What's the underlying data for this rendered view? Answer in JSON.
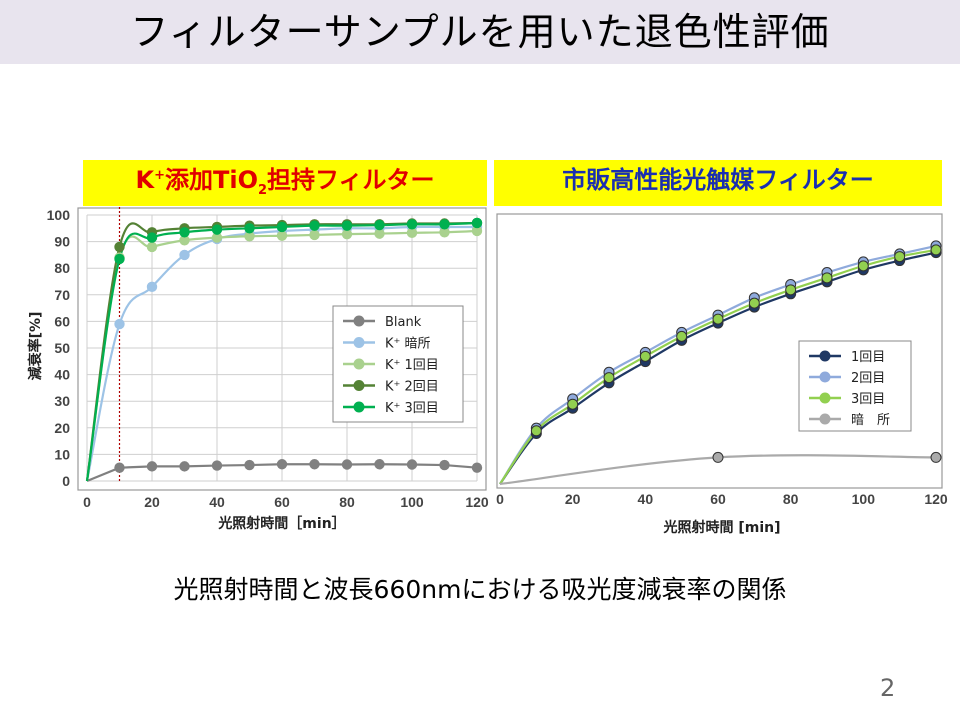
{
  "slide": {
    "title": "フィルターサンプルを用いた退色性評価",
    "caption": "光照射時間と波長660nmにおける吸光度減衰率の関係",
    "page_number": "2"
  },
  "panels": {
    "left_label_k": "K",
    "left_label_sup": "+",
    "left_label_mid": "添加TiO",
    "left_label_sub": "2",
    "left_label_end": "担持フィルター",
    "right_label": "市販高性能光触媒フィルター"
  },
  "colors": {
    "title_bar": "#e8e4ee",
    "label_bg": "#ffff00",
    "left_label_text": "#e00000",
    "right_label_text": "#1a2fb0"
  },
  "chart_data": [
    {
      "type": "line",
      "ylabel": "減衰率[%]",
      "xlabel": "光照射時間［min］",
      "xlim": [
        0,
        120
      ],
      "ylim": [
        0,
        100
      ],
      "xticks": [
        0,
        20,
        40,
        60,
        80,
        100,
        120
      ],
      "yticks": [
        0,
        10,
        20,
        30,
        40,
        50,
        60,
        70,
        80,
        90,
        100
      ],
      "grid": true,
      "legend_position": "right",
      "annotation": {
        "type": "vertical-dotted-line",
        "x": 10,
        "color": "#b00000"
      },
      "series": [
        {
          "name": "Blank",
          "color": "#808080",
          "smooth": false,
          "x": [
            0,
            10,
            20,
            30,
            40,
            50,
            60,
            70,
            80,
            90,
            100,
            110,
            120
          ],
          "y": [
            0,
            5,
            5.5,
            5.5,
            5.8,
            6,
            6.3,
            6.3,
            6.2,
            6.3,
            6.2,
            6,
            5
          ]
        },
        {
          "name": "K⁺ 暗所",
          "color": "#9dc3e6",
          "smooth": true,
          "x": [
            0,
            10,
            20,
            30,
            40,
            50,
            60,
            70,
            80,
            90,
            100,
            110,
            120
          ],
          "y": [
            0,
            59,
            73,
            85,
            91,
            93,
            94,
            94.5,
            95,
            95,
            95.5,
            95.5,
            95.5
          ]
        },
        {
          "name": "K⁺ 1回目",
          "color": "#a9d18e",
          "smooth": true,
          "x": [
            0,
            10,
            20,
            30,
            40,
            50,
            60,
            70,
            80,
            90,
            100,
            110,
            120
          ],
          "y": [
            0,
            84,
            88,
            90.5,
            91.5,
            92,
            92.2,
            92.5,
            92.8,
            93,
            93.3,
            93.5,
            94
          ]
        },
        {
          "name": "K⁺ 2回目",
          "color": "#548235",
          "smooth": true,
          "x": [
            0,
            10,
            20,
            30,
            40,
            50,
            60,
            70,
            80,
            90,
            100,
            110,
            120
          ],
          "y": [
            0,
            88,
            93.5,
            95,
            95.5,
            96,
            96.2,
            96.5,
            96.5,
            96.5,
            96.8,
            96.8,
            97
          ]
        },
        {
          "name": "K⁺ 3回目",
          "color": "#00b050",
          "smooth": true,
          "x": [
            0,
            10,
            20,
            30,
            40,
            50,
            60,
            70,
            80,
            90,
            100,
            110,
            120
          ],
          "y": [
            0,
            83.5,
            91.5,
            93.5,
            94.5,
            95,
            95.5,
            96,
            96,
            96.2,
            96.5,
            96.5,
            97
          ]
        }
      ]
    },
    {
      "type": "line",
      "ylabel": "",
      "xlabel": "光照射時間 [min]",
      "xlim": [
        0,
        120
      ],
      "ylim": [
        0,
        100
      ],
      "xticks": [
        0,
        20,
        40,
        60,
        80,
        100,
        120
      ],
      "yticks": [],
      "grid": false,
      "legend_position": "right",
      "series": [
        {
          "name": "1回目",
          "color": "#1f3864",
          "smooth": true,
          "x": [
            0,
            10,
            20,
            30,
            40,
            50,
            60,
            70,
            80,
            90,
            100,
            110,
            120
          ],
          "y": [
            0,
            19,
            28.5,
            38,
            46,
            54,
            60.5,
            66.5,
            71.5,
            76,
            80.5,
            84,
            87
          ]
        },
        {
          "name": "2回目",
          "color": "#8faadc",
          "smooth": true,
          "x": [
            0,
            10,
            20,
            30,
            40,
            50,
            60,
            70,
            80,
            90,
            100,
            110,
            120
          ],
          "y": [
            0,
            21,
            32,
            42,
            49.5,
            57,
            63.5,
            70,
            75,
            79.5,
            83.5,
            86.5,
            89.5
          ]
        },
        {
          "name": "3回目",
          "color": "#92d050",
          "smooth": true,
          "x": [
            0,
            10,
            20,
            30,
            40,
            50,
            60,
            70,
            80,
            90,
            100,
            110,
            120
          ],
          "y": [
            0,
            20,
            30,
            40,
            48,
            55.5,
            62,
            68,
            73,
            77.5,
            82,
            85.5,
            88
          ]
        },
        {
          "name": "暗　所",
          "color": "#aaaaaa",
          "smooth": true,
          "x": [
            0,
            60,
            120
          ],
          "y": [
            0,
            10,
            10
          ]
        }
      ]
    }
  ]
}
